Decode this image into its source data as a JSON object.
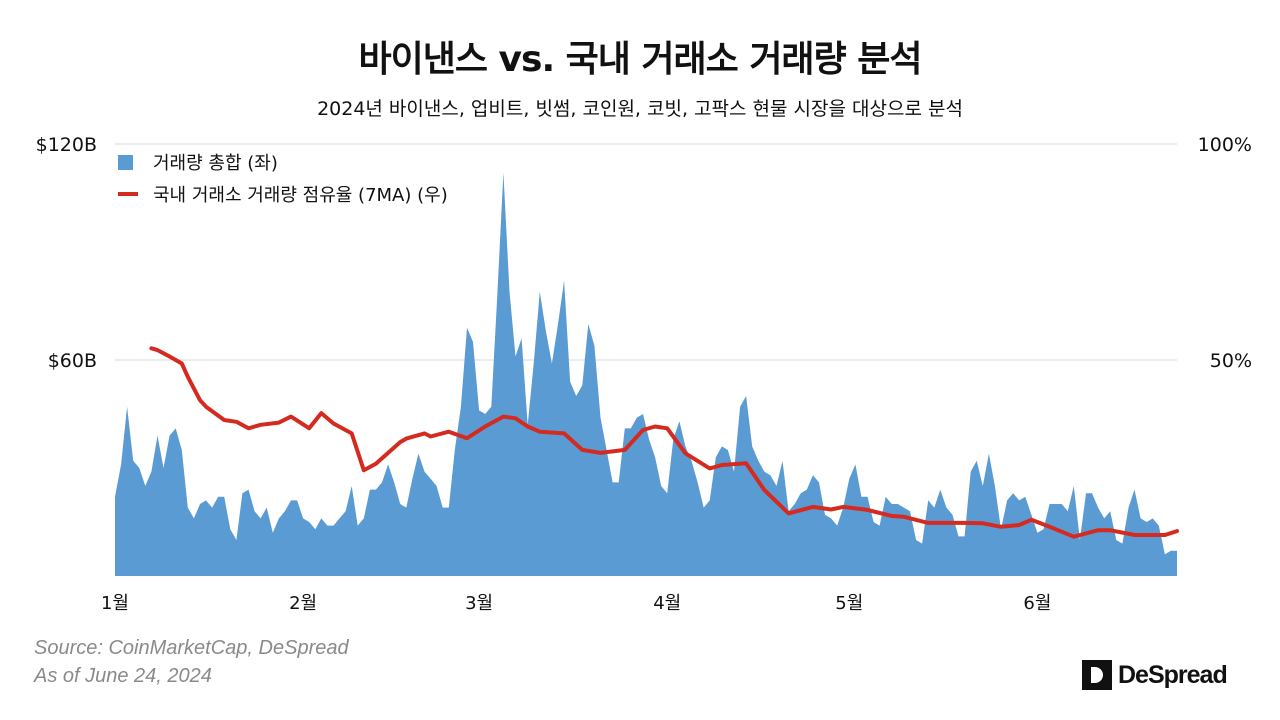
{
  "title": "바이낸스 vs. 국내 거래소 거래량 분석",
  "subtitle": "2024년 바이낸스, 업비트, 빗썸, 코인원, 코빗, 고팍스 현물 시장을 대상으로 분석",
  "source_line1": "Source: CoinMarketCap, DeSpread",
  "source_line2": "As of June 24, 2024",
  "logo_text": "DeSpread",
  "colors": {
    "volume": "#5b9bd3",
    "share": "#d42a1f",
    "grid": "#d9d9d9"
  },
  "chart_data": {
    "type": "area+line",
    "grid": true,
    "legend_placement": "top-left",
    "x_range": [
      "2024-01-01",
      "2024-06-24"
    ],
    "x_ticks": [
      {
        "date": "2024-01-01",
        "label": "1월"
      },
      {
        "date": "2024-02-01",
        "label": "2월"
      },
      {
        "date": "2024-03-01",
        "label": "3월"
      },
      {
        "date": "2024-04-01",
        "label": "4월"
      },
      {
        "date": "2024-05-01",
        "label": "5월"
      },
      {
        "date": "2024-06-01",
        "label": "6월"
      }
    ],
    "y_left": {
      "range": [
        0,
        120
      ],
      "unit": "$B",
      "ticks": [
        {
          "value": 60,
          "label": "$60B"
        },
        {
          "value": 120,
          "label": "$120B"
        }
      ]
    },
    "y_right": {
      "range": [
        0,
        100
      ],
      "unit": "%",
      "ticks": [
        {
          "value": 50,
          "label": "50%"
        },
        {
          "value": 100,
          "label": "100%"
        }
      ]
    },
    "series": [
      {
        "name": "거래량 총합 (좌)",
        "type": "area",
        "axis": "left",
        "daily_values": [
          22,
          31,
          47,
          32,
          30,
          25,
          29,
          39,
          30,
          39,
          41,
          35,
          19,
          16,
          20,
          21,
          19,
          22,
          22,
          13,
          10,
          23,
          24,
          18,
          16,
          19,
          12,
          16,
          18,
          21,
          21,
          16,
          15,
          13,
          16,
          14,
          14,
          16,
          18,
          25,
          14,
          16,
          24,
          24,
          26,
          31,
          26,
          20,
          19,
          27,
          34,
          29,
          27,
          25,
          19,
          19,
          35,
          47,
          69,
          65,
          46,
          45,
          47,
          78,
          112,
          79,
          61,
          66,
          42,
          59,
          79,
          68,
          59,
          70,
          82,
          54,
          50,
          53,
          70,
          64,
          44,
          35,
          26,
          26,
          41,
          41,
          44,
          45,
          38,
          33,
          25,
          23,
          38,
          43,
          36,
          32,
          26,
          19,
          21,
          33,
          36,
          35,
          29,
          47,
          50,
          36,
          32,
          29,
          28,
          25,
          32,
          18,
          20,
          23,
          24,
          28,
          26,
          17,
          16,
          14,
          19,
          27,
          31,
          22,
          22,
          15,
          14,
          22,
          20,
          20,
          19,
          18,
          10,
          9,
          21,
          19,
          24,
          19,
          17,
          11,
          11,
          29,
          32,
          25,
          34,
          25,
          13,
          21,
          23,
          21,
          22,
          17,
          12,
          13,
          20,
          20,
          20,
          18,
          25,
          10,
          23,
          23,
          19,
          16,
          18,
          10,
          9,
          19,
          24,
          16,
          15,
          16,
          14,
          6,
          7,
          7
        ]
      },
      {
        "name": "국내 거래소 거래량 점유율 (7MA) (우)",
        "type": "line",
        "axis": "right",
        "points": [
          [
            "2024-01-07",
            52.7
          ],
          [
            "2024-01-08",
            52.3
          ],
          [
            "2024-01-10",
            50.8
          ],
          [
            "2024-01-12",
            49.2
          ],
          [
            "2024-01-13",
            46.1
          ],
          [
            "2024-01-15",
            40.7
          ],
          [
            "2024-01-16",
            39.2
          ],
          [
            "2024-01-19",
            36.1
          ],
          [
            "2024-01-21",
            35.7
          ],
          [
            "2024-01-23",
            34.2
          ],
          [
            "2024-01-25",
            35.0
          ],
          [
            "2024-01-28",
            35.5
          ],
          [
            "2024-01-30",
            36.9
          ],
          [
            "2024-02-02",
            34.2
          ],
          [
            "2024-02-04",
            37.7
          ],
          [
            "2024-02-06",
            35.3
          ],
          [
            "2024-02-09",
            33.0
          ],
          [
            "2024-02-11",
            24.5
          ],
          [
            "2024-02-13",
            26.0
          ],
          [
            "2024-02-17",
            31.0
          ],
          [
            "2024-02-18",
            31.8
          ],
          [
            "2024-02-21",
            33.0
          ],
          [
            "2024-02-22",
            32.3
          ],
          [
            "2024-02-25",
            33.4
          ],
          [
            "2024-02-28",
            31.9
          ],
          [
            "2024-03-02",
            34.6
          ],
          [
            "2024-03-05",
            36.9
          ],
          [
            "2024-03-07",
            36.5
          ],
          [
            "2024-03-09",
            34.6
          ],
          [
            "2024-03-11",
            33.4
          ],
          [
            "2024-03-15",
            33.0
          ],
          [
            "2024-03-18",
            29.2
          ],
          [
            "2024-03-21",
            28.5
          ],
          [
            "2024-03-25",
            29.2
          ],
          [
            "2024-03-28",
            33.8
          ],
          [
            "2024-03-30",
            34.6
          ],
          [
            "2024-04-01",
            34.2
          ],
          [
            "2024-04-04",
            28.4
          ],
          [
            "2024-04-08",
            24.9
          ],
          [
            "2024-04-10",
            25.7
          ],
          [
            "2024-04-14",
            26.1
          ],
          [
            "2024-04-17",
            19.9
          ],
          [
            "2024-04-21",
            14.5
          ],
          [
            "2024-04-25",
            16.0
          ],
          [
            "2024-04-28",
            15.4
          ],
          [
            "2024-04-30",
            16.0
          ],
          [
            "2024-05-04",
            15.3
          ],
          [
            "2024-05-08",
            13.9
          ],
          [
            "2024-05-10",
            13.7
          ],
          [
            "2024-05-14",
            12.3
          ],
          [
            "2024-05-17",
            12.3
          ],
          [
            "2024-05-20",
            12.3
          ],
          [
            "2024-05-23",
            12.2
          ],
          [
            "2024-05-26",
            11.4
          ],
          [
            "2024-05-29",
            11.8
          ],
          [
            "2024-05-31",
            13.0
          ],
          [
            "2024-06-03",
            11.4
          ],
          [
            "2024-06-07",
            9.1
          ],
          [
            "2024-06-11",
            10.6
          ],
          [
            "2024-06-13",
            10.6
          ],
          [
            "2024-06-17",
            9.5
          ],
          [
            "2024-06-22",
            9.5
          ],
          [
            "2024-06-24",
            10.4
          ]
        ]
      }
    ]
  }
}
